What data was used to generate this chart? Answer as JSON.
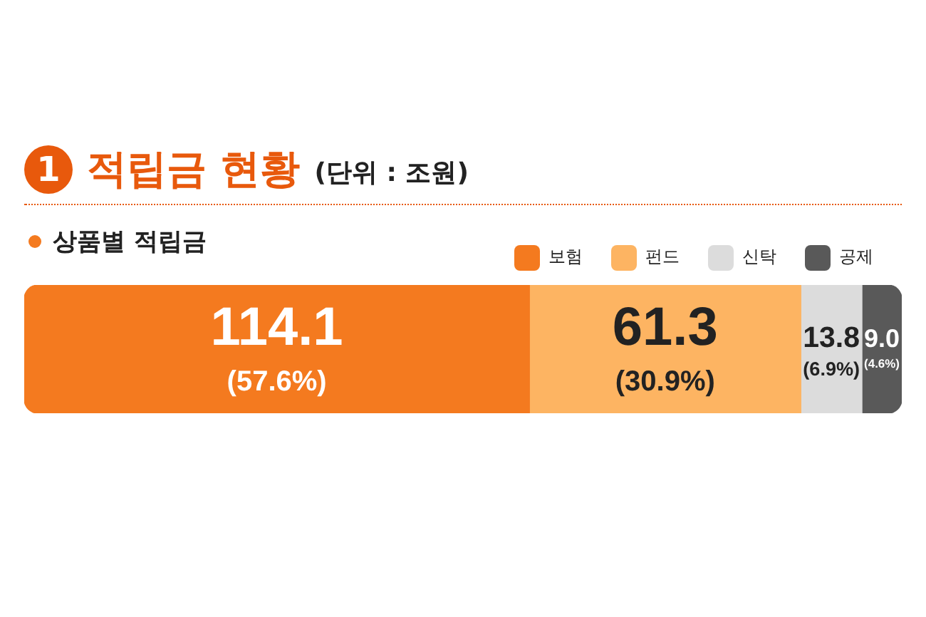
{
  "chart_data": {
    "type": "bar",
    "orientation": "horizontal",
    "stacked": true,
    "title": "적립금 현황",
    "subtitle": "(단위 : 조원)",
    "annotations": [
      "1",
      "상품별 적립금"
    ],
    "categories": [
      null
    ],
    "legend": "top right",
    "series": [
      {
        "name": "보험",
        "color": "#f47a1f",
        "values": [
          114.1
        ],
        "value_labels": [
          "114.1\n(57.6%)"
        ]
      },
      {
        "name": "펀드",
        "color": "#fdb462",
        "values": [
          61.3
        ],
        "value_labels": [
          "61.3\n(30.9%)"
        ]
      },
      {
        "name": "신탁",
        "color": "#dcdcdc",
        "values": [
          13.8
        ],
        "value_labels": [
          "13.8\n(6.9%)"
        ]
      },
      {
        "name": "공제",
        "color": "#595959",
        "values": [
          9.0
        ],
        "value_labels": [
          "9.0\n(4.6%)"
        ]
      }
    ]
  }
}
